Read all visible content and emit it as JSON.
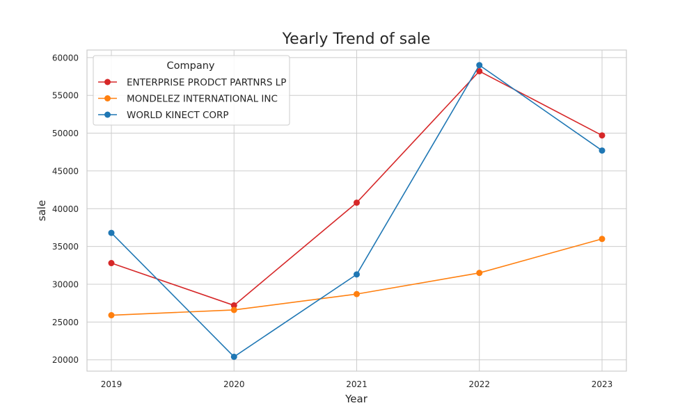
{
  "chart_data": {
    "type": "line",
    "title": "Yearly Trend of sale",
    "xlabel": "Year",
    "ylabel": "sale",
    "x": [
      2019,
      2020,
      2021,
      2022,
      2023
    ],
    "ylim": [
      18500,
      61000
    ],
    "yticks": [
      20000,
      25000,
      30000,
      35000,
      40000,
      45000,
      50000,
      55000,
      60000
    ],
    "grid": true,
    "legend": {
      "title": "Company",
      "placement": "top-left"
    },
    "series": [
      {
        "name": "ENTERPRISE PRODCT PARTNRS LP",
        "color": "#d62728",
        "values": [
          32800,
          27200,
          40800,
          58200,
          49700
        ]
      },
      {
        "name": "MONDELEZ INTERNATIONAL INC",
        "color": "#ff7f0e",
        "values": [
          25900,
          26600,
          28700,
          31500,
          36000
        ]
      },
      {
        "name": "WORLD KINECT CORP",
        "color": "#1f77b4",
        "values": [
          36800,
          20400,
          31300,
          59000,
          47700
        ]
      }
    ]
  }
}
